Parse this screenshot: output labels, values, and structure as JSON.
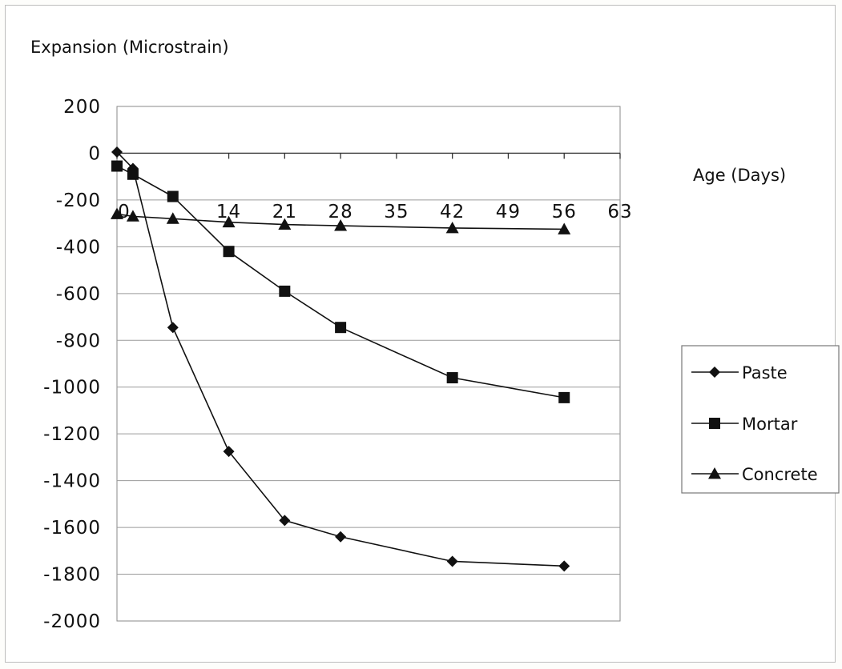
{
  "chart_data": {
    "type": "line",
    "ylabel": "Expansion (Microstrain)",
    "xlabel": "Age (Days)",
    "x_ticks": [
      0,
      14,
      21,
      28,
      35,
      42,
      49,
      56,
      63
    ],
    "x_tick_labels": [
      "0",
      "14",
      "21",
      "28",
      "35",
      "42",
      "49",
      "56",
      "63"
    ],
    "y_ticks": [
      200,
      0,
      -200,
      -400,
      -600,
      -800,
      -1000,
      -1200,
      -1400,
      -1600,
      -1800,
      -2000
    ],
    "y_tick_labels": [
      "200",
      "0",
      "-200",
      "-400",
      "-600",
      "-800",
      "-1000",
      "-1200",
      "-1400",
      "-1600",
      "-1800",
      "-2000"
    ],
    "xlim": [
      0,
      63
    ],
    "ylim": [
      -2000,
      200
    ],
    "grid": "horizontal",
    "legend_position": "right",
    "series": [
      {
        "name": "Paste",
        "marker": "diamond",
        "x": [
          0,
          2,
          7,
          14,
          21,
          28,
          42,
          56
        ],
        "y": [
          5,
          -65,
          -745,
          -1275,
          -1570,
          -1640,
          -1745,
          -1765
        ]
      },
      {
        "name": "Mortar",
        "marker": "square",
        "x": [
          0,
          2,
          7,
          14,
          21,
          28,
          42,
          56
        ],
        "y": [
          -55,
          -90,
          -185,
          -420,
          -590,
          -745,
          -960,
          -1045
        ]
      },
      {
        "name": "Concrete",
        "marker": "triangle",
        "x": [
          0,
          2,
          7,
          14,
          21,
          28,
          42,
          56
        ],
        "y": [
          -260,
          -270,
          -280,
          -295,
          -305,
          -310,
          -320,
          -325
        ]
      }
    ]
  }
}
